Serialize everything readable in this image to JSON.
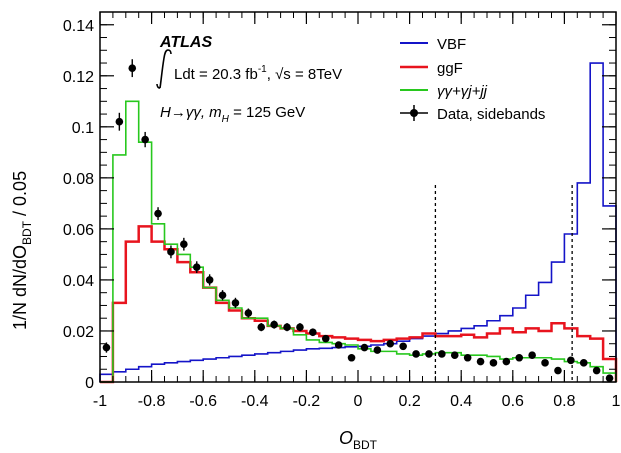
{
  "chart_data": {
    "type": "line",
    "xlabel_main": "O",
    "xlabel_sub": "BDT",
    "ylabel_main": "1/N dN/dO",
    "ylabel_sub": "BDT",
    "ylabel_suffix": " / 0.05",
    "xlim": [
      -1,
      1
    ],
    "ylim": [
      0,
      0.145
    ],
    "x_ticks": [
      "-1",
      "-0.8",
      "-0.6",
      "-0.4",
      "-0.2",
      "0",
      "0.2",
      "0.4",
      "0.6",
      "0.8",
      "1"
    ],
    "x_tick_values": [
      -1,
      -0.8,
      -0.6,
      -0.4,
      -0.2,
      0,
      0.2,
      0.4,
      0.6,
      0.8,
      1
    ],
    "y_ticks": [
      "0",
      "0.02",
      "0.04",
      "0.06",
      "0.08",
      "0.1",
      "0.12",
      "0.14"
    ],
    "y_tick_values": [
      0,
      0.02,
      0.04,
      0.06,
      0.08,
      0.1,
      0.12,
      0.14
    ],
    "annotations": {
      "atlas": "ATLAS",
      "lumi": "Ldt = 20.3 fb",
      "lumi_sup": "-1",
      "energy": ", √s = 8TeV",
      "process": "H→γγ, ",
      "mass_label": "m",
      "mass_sub": "H",
      "mass_value": " = 125 GeV"
    },
    "cut_lines": [
      0.3,
      0.83
    ],
    "bin_edges": [
      -1,
      -0.95,
      -0.9,
      -0.85,
      -0.8,
      -0.75,
      -0.7,
      -0.65,
      -0.6,
      -0.55,
      -0.5,
      -0.45,
      -0.4,
      -0.35,
      -0.3,
      -0.25,
      -0.2,
      -0.15,
      -0.1,
      -0.05,
      0,
      0.05,
      0.1,
      0.15,
      0.2,
      0.25,
      0.3,
      0.35,
      0.4,
      0.45,
      0.5,
      0.55,
      0.6,
      0.65,
      0.7,
      0.75,
      0.8,
      0.85,
      0.9,
      0.95,
      1
    ],
    "series": [
      {
        "name": "VBF",
        "color": "#1414c8",
        "values": [
          0.003,
          0.004,
          0.005,
          0.006,
          0.007,
          0.0075,
          0.008,
          0.0085,
          0.009,
          0.0095,
          0.01,
          0.0105,
          0.011,
          0.0115,
          0.012,
          0.0125,
          0.013,
          0.0132,
          0.0135,
          0.0138,
          0.014,
          0.0145,
          0.015,
          0.016,
          0.017,
          0.018,
          0.019,
          0.02,
          0.021,
          0.022,
          0.024,
          0.026,
          0.029,
          0.034,
          0.039,
          0.047,
          0.058,
          0.078,
          0.125,
          0.069
        ]
      },
      {
        "name": "ggF",
        "color": "#e8141e",
        "values": [
          0.0,
          0.031,
          0.055,
          0.061,
          0.055,
          0.052,
          0.047,
          0.043,
          0.037,
          0.031,
          0.028,
          0.025,
          0.024,
          0.022,
          0.021,
          0.02,
          0.019,
          0.018,
          0.0175,
          0.017,
          0.0165,
          0.016,
          0.0165,
          0.017,
          0.0175,
          0.019,
          0.018,
          0.018,
          0.0185,
          0.0175,
          0.019,
          0.021,
          0.0195,
          0.021,
          0.02,
          0.023,
          0.021,
          0.018,
          0.017,
          0.009
        ]
      },
      {
        "name": "γγ+γj+jj",
        "color": "#28c81e",
        "values": [
          0.0,
          0.089,
          0.11,
          0.094,
          0.062,
          0.054,
          0.05,
          0.045,
          0.037,
          0.032,
          0.029,
          0.025,
          0.025,
          0.022,
          0.021,
          0.0185,
          0.0165,
          0.0155,
          0.015,
          0.0145,
          0.013,
          0.012,
          0.012,
          0.011,
          0.0105,
          0.011,
          0.0115,
          0.0115,
          0.0105,
          0.0105,
          0.01,
          0.009,
          0.0095,
          0.0095,
          0.0095,
          0.009,
          0.008,
          0.0075,
          0.006,
          0.0035
        ]
      }
    ],
    "data_points": {
      "name": "Data, sidebands",
      "x": [
        -0.975,
        -0.925,
        -0.875,
        -0.825,
        -0.775,
        -0.725,
        -0.675,
        -0.625,
        -0.575,
        -0.525,
        -0.475,
        -0.425,
        -0.375,
        -0.325,
        -0.275,
        -0.225,
        -0.175,
        -0.125,
        -0.075,
        -0.025,
        0.025,
        0.075,
        0.125,
        0.175,
        0.225,
        0.275,
        0.325,
        0.375,
        0.425,
        0.475,
        0.525,
        0.575,
        0.625,
        0.675,
        0.725,
        0.775,
        0.825,
        0.875,
        0.925,
        0.975
      ],
      "y": [
        0.0135,
        0.102,
        0.123,
        0.095,
        0.066,
        0.051,
        0.054,
        0.045,
        0.04,
        0.034,
        0.031,
        0.027,
        0.0215,
        0.0225,
        0.0215,
        0.0215,
        0.0195,
        0.017,
        0.0145,
        0.0095,
        0.0135,
        0.0125,
        0.015,
        0.014,
        0.011,
        0.011,
        0.011,
        0.0105,
        0.0095,
        0.008,
        0.0075,
        0.008,
        0.0095,
        0.0105,
        0.0075,
        0.0045,
        0.0085,
        0.0075,
        0.0045,
        0.0015
      ],
      "err": [
        0.002,
        0.0035,
        0.0035,
        0.003,
        0.0025,
        0.0025,
        0.0025,
        0.0023,
        0.0022,
        0.002,
        0.002,
        0.0018,
        0.0016,
        0.0016,
        0.0016,
        0.0016,
        0.0015,
        0.0014,
        0.0013,
        0.0012,
        0.0013,
        0.0013,
        0.0013,
        0.0013,
        0.0012,
        0.0012,
        0.0012,
        0.0012,
        0.0011,
        0.001,
        0.001,
        0.001,
        0.0011,
        0.0011,
        0.001,
        0.0009,
        0.001,
        0.001,
        0.0009,
        0.0007
      ]
    }
  }
}
